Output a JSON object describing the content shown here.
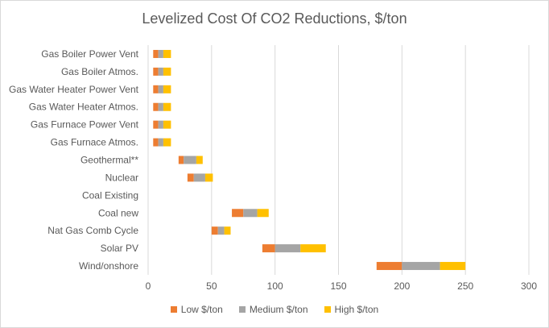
{
  "chart_data": {
    "type": "bar",
    "orientation": "horizontal",
    "stacked": true,
    "title": "Levelized Cost Of CO2 Reductions, $/ton",
    "categories": [
      "Gas Boiler Power Vent",
      "Gas Boiler Atmos.",
      "Gas Water Heater Power Vent",
      "Gas Water Heater Atmos.",
      "Gas Furnace Power Vent",
      "Gas Furnace Atmos.",
      "Geothermal**",
      "Nuclear",
      "Coal Existing",
      "Coal new",
      "Nat Gas Comb Cycle",
      "Solar PV",
      "Wind/onshore"
    ],
    "segments": [
      [
        4,
        8,
        12,
        18
      ],
      [
        4,
        8,
        12,
        18
      ],
      [
        4,
        8,
        12,
        18
      ],
      [
        4,
        8,
        12,
        18
      ],
      [
        4,
        8,
        12,
        18
      ],
      [
        4,
        8,
        12,
        18
      ],
      [
        24,
        28,
        38,
        43
      ],
      [
        31,
        36,
        45,
        51
      ],
      null,
      [
        66,
        75,
        86,
        95
      ],
      [
        50,
        55,
        60,
        65
      ],
      [
        90,
        100,
        120,
        140
      ],
      [
        180,
        200,
        230,
        250
      ]
    ],
    "segments_note_order": [
      "start",
      "Low $/ton end",
      "Medium $/ton end",
      "High $/ton end"
    ],
    "series": [
      {
        "name": "Low $/ton",
        "color": "#ed7d31"
      },
      {
        "name": "Medium $/ton",
        "color": "#a5a5a5"
      },
      {
        "name": "High $/ton",
        "color": "#ffc000"
      }
    ],
    "xlim": [
      0,
      300
    ],
    "xticks": [
      "0",
      "50",
      "100",
      "150",
      "200",
      "250",
      "300"
    ],
    "grid": true,
    "legend_position": "bottom"
  }
}
